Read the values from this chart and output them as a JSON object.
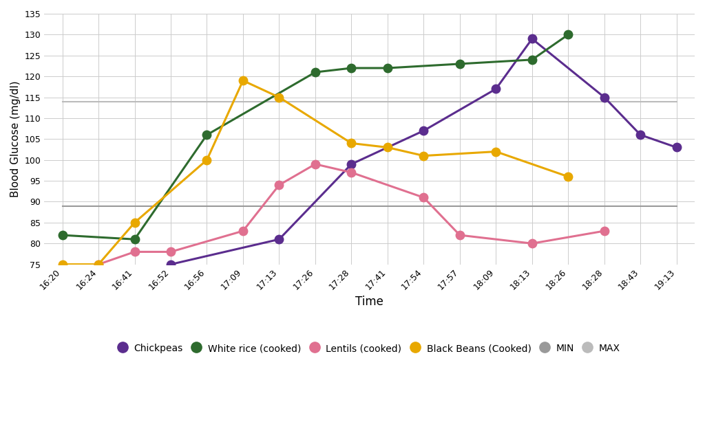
{
  "times": [
    "16:20",
    "16:24",
    "16:41",
    "16:52",
    "16:56",
    "17:09",
    "17:13",
    "17:26",
    "17:28",
    "17:41",
    "17:54",
    "17:57",
    "18:09",
    "18:13",
    "18:26",
    "18:28",
    "18:43",
    "19:13"
  ],
  "chickpeas": {
    "x": [
      "16:20",
      "16:24",
      "16:41",
      "16:52",
      "16:56",
      "17:09",
      "17:13",
      "17:26",
      "17:28",
      "17:41",
      "17:54",
      "17:57",
      "18:09",
      "18:13",
      "18:26",
      "18:28",
      "18:43",
      "19:13"
    ],
    "y": [
      null,
      null,
      null,
      75,
      null,
      null,
      81,
      null,
      99,
      null,
      107,
      null,
      117,
      129,
      null,
      115,
      106,
      103
    ],
    "color": "#5b2d8e",
    "label": "Chickpeas"
  },
  "white_rice": {
    "x": [
      "16:20",
      "16:24",
      "16:41",
      "16:52",
      "16:56",
      "17:09",
      "17:13",
      "17:26",
      "17:28",
      "17:41",
      "17:54",
      "17:57",
      "18:09",
      "18:13",
      "18:26",
      "18:28",
      "18:43",
      "19:13"
    ],
    "y": [
      82,
      null,
      81,
      null,
      106,
      null,
      null,
      121,
      122,
      122,
      null,
      123,
      null,
      124,
      130,
      null,
      null,
      null
    ],
    "color": "#2e6b2e",
    "label": "White rice (cooked)"
  },
  "lentils": {
    "x": [
      "16:20",
      "16:24",
      "16:41",
      "16:52",
      "16:56",
      "17:09",
      "17:13",
      "17:26",
      "17:28",
      "17:41",
      "17:54",
      "17:57",
      "18:09",
      "18:13",
      "18:26",
      "18:28",
      "18:43",
      "19:13"
    ],
    "y": [
      null,
      75,
      78,
      78,
      null,
      83,
      94,
      99,
      97,
      null,
      91,
      82,
      null,
      80,
      null,
      83,
      null,
      null
    ],
    "color": "#e07090",
    "label": "Lentils (cooked)"
  },
  "black_beans": {
    "x": [
      "16:20",
      "16:24",
      "16:41",
      "16:52",
      "16:56",
      "17:09",
      "17:13",
      "17:26",
      "17:28",
      "17:41",
      "17:54",
      "17:57",
      "18:09",
      "18:13",
      "18:26",
      "18:28",
      "18:43",
      "19:13"
    ],
    "y": [
      75,
      75,
      85,
      null,
      100,
      119,
      115,
      null,
      104,
      103,
      101,
      null,
      102,
      null,
      96,
      null,
      null,
      null
    ],
    "color": "#e8a800",
    "label": "Black Beans (Cooked)"
  },
  "min_line": {
    "y": 89,
    "color": "#999999",
    "label": "MIN"
  },
  "max_line": {
    "y": 114,
    "color": "#bbbbbb",
    "label": "MAX"
  },
  "ylim": [
    75,
    135
  ],
  "yticks": [
    75,
    80,
    85,
    90,
    95,
    100,
    105,
    110,
    115,
    120,
    125,
    130,
    135
  ],
  "xlabel": "Time",
  "ylabel": "Blood Glucose (mg/dl)",
  "background_color": "#ffffff",
  "grid_color": "#cccccc"
}
